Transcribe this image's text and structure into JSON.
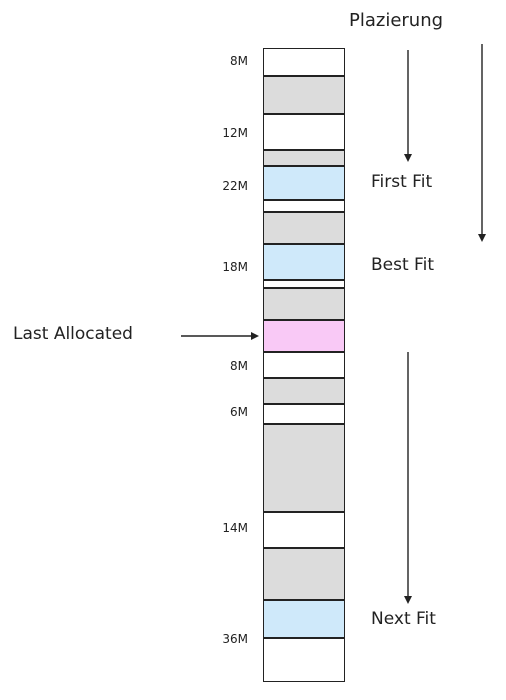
{
  "header": {
    "placement_label": "Plazierung"
  },
  "size_labels": [
    "8M",
    "12M",
    "22M",
    "18M",
    "8M",
    "6M",
    "14M",
    "36M"
  ],
  "fit_labels": {
    "first_fit": "First Fit",
    "best_fit": "Best Fit",
    "next_fit": "Next Fit"
  },
  "pointer": {
    "label": "Last Allocated"
  },
  "colors": {
    "free": "#ffffff",
    "allocated": "#dcdcdc",
    "fit_candidate": "#cfe9fa",
    "last_allocated": "#f9c9f6",
    "border": "#222222"
  }
}
